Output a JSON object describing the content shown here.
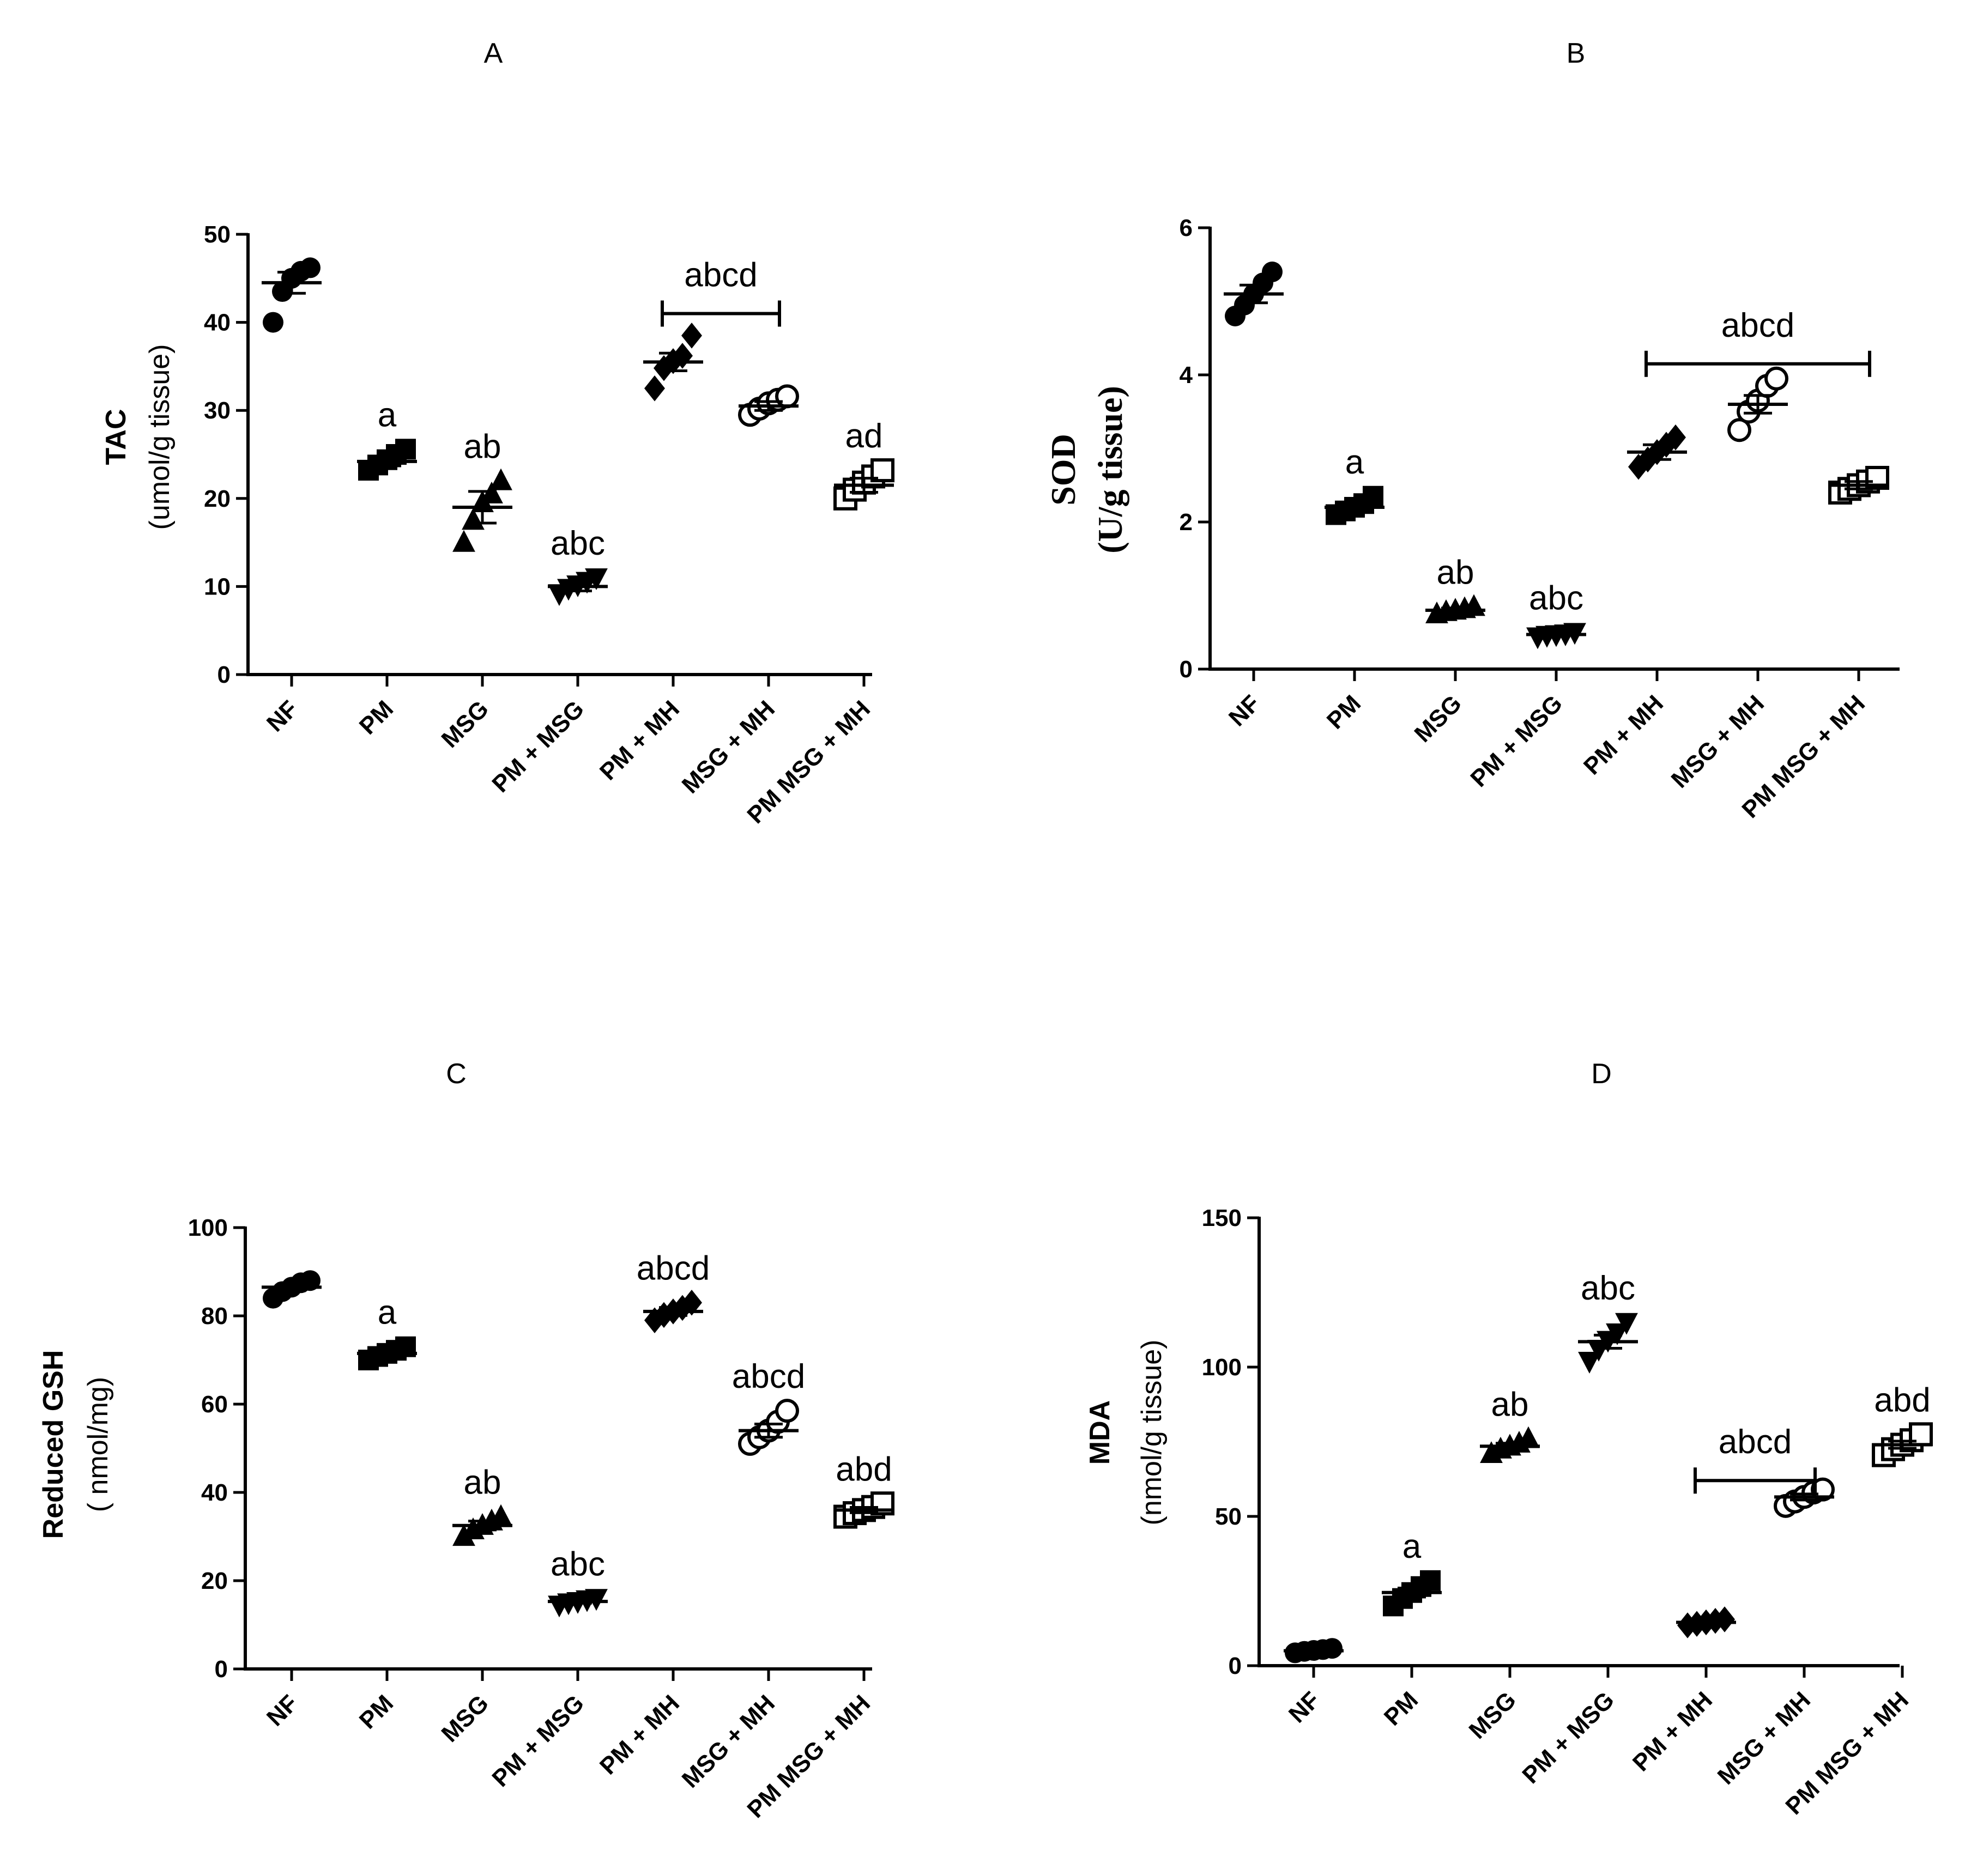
{
  "chart_data": [
    {
      "type": "scatter",
      "panel": "A",
      "ylabel": "TAC",
      "ylabel_unit": "(umol/g tissue)",
      "ylim": [
        0,
        50
      ],
      "yticks": [
        0,
        10,
        20,
        30,
        40,
        50
      ],
      "categories": [
        "NF",
        "PM",
        "MSG",
        "PM + MSG",
        "PM + MH",
        "MSG + MH",
        "PM MSG + MH"
      ],
      "markers": [
        "circle",
        "square",
        "triangle",
        "triangle-down",
        "diamond",
        "circle-open",
        "square-open"
      ],
      "means": [
        44.5,
        24.2,
        19,
        10,
        35.5,
        30.5,
        21.5
      ],
      "sem": [
        1.2,
        0.5,
        1.8,
        0.5,
        1.0,
        0.5,
        0.8
      ],
      "points": [
        [
          40,
          43.5,
          45,
          45.8,
          46.2
        ],
        [
          23.2,
          23.8,
          24.4,
          25,
          25.6
        ],
        [
          15,
          17.5,
          19.5,
          20.5,
          22
        ],
        [
          9.2,
          9.8,
          10.2,
          10.6,
          11
        ],
        [
          32.5,
          34.8,
          35.6,
          36.2,
          38.5
        ],
        [
          29.5,
          30.2,
          30.8,
          31.2,
          31.6
        ],
        [
          20,
          21,
          21.8,
          22.5,
          23.2
        ]
      ],
      "annotations": [
        "",
        "a",
        "ab",
        "abc",
        "",
        "",
        "ad"
      ],
      "bracket": {
        "label": "abcd",
        "from": 4,
        "to": 5,
        "y": 41
      }
    },
    {
      "type": "scatter",
      "panel": "B",
      "ylabel": "SOD",
      "ylabel_unit": "(U/g tissue)",
      "ylim": [
        0,
        6
      ],
      "yticks": [
        0,
        2,
        4,
        6
      ],
      "categories": [
        "NF",
        "PM",
        "MSG",
        "PM + MSG",
        "PM + MH",
        "MSG + MH",
        "PM MSG + MH"
      ],
      "markers": [
        "circle",
        "square",
        "triangle",
        "triangle-down",
        "diamond",
        "circle-open",
        "square-open"
      ],
      "means": [
        5.1,
        2.2,
        0.8,
        0.47,
        2.95,
        3.6,
        2.5
      ],
      "sem": [
        0.12,
        0.05,
        0.03,
        0.02,
        0.1,
        0.12,
        0.05
      ],
      "points": [
        [
          4.8,
          4.95,
          5.1,
          5.25,
          5.4
        ],
        [
          2.1,
          2.15,
          2.2,
          2.25,
          2.35
        ],
        [
          0.75,
          0.78,
          0.8,
          0.82,
          0.85
        ],
        [
          0.44,
          0.46,
          0.47,
          0.48,
          0.5
        ],
        [
          2.75,
          2.85,
          2.95,
          3.05,
          3.15
        ],
        [
          3.25,
          3.5,
          3.65,
          3.85,
          3.95
        ],
        [
          2.4,
          2.45,
          2.5,
          2.55,
          2.6
        ]
      ],
      "annotations": [
        "",
        "a",
        "ab",
        "abc",
        "",
        "",
        ""
      ],
      "bracket": {
        "label": "abcd",
        "from": 4,
        "to": 6,
        "y": 4.15
      }
    },
    {
      "type": "scatter",
      "panel": "C",
      "ylabel": "Reduced GSH",
      "ylabel_unit": "( nmol/mg)",
      "ylim": [
        0,
        100
      ],
      "yticks": [
        0,
        20,
        40,
        60,
        80,
        100
      ],
      "categories": [
        "NF",
        "PM",
        "MSG",
        "PM + MSG",
        "PM + MH",
        "MSG + MH",
        "PM MSG + MH"
      ],
      "markers": [
        "circle",
        "square",
        "triangle",
        "triangle-down",
        "diamond",
        "circle-open",
        "square-open"
      ],
      "means": [
        86.5,
        71.5,
        32.5,
        15.3,
        81,
        54,
        36
      ],
      "sem": [
        0.8,
        0.8,
        1.0,
        0.4,
        0.9,
        1.5,
        0.6
      ],
      "points": [
        [
          84,
          85.5,
          86.5,
          87.5,
          88
        ],
        [
          70,
          70.8,
          71.5,
          72.2,
          73
        ],
        [
          30,
          31.5,
          32.5,
          33.5,
          34.5
        ],
        [
          14.5,
          15,
          15.3,
          15.7,
          16
        ],
        [
          79,
          80.2,
          81,
          81.8,
          83
        ],
        [
          51,
          52.5,
          54,
          56,
          58.5
        ],
        [
          34.5,
          35.3,
          36,
          36.7,
          37.5
        ]
      ],
      "annotations": [
        "",
        "a",
        "ab",
        "abc",
        "abcd",
        "abcd",
        "abd"
      ]
    },
    {
      "type": "scatter",
      "panel": "D",
      "ylabel": "MDA",
      "ylabel_unit": "(nmol/g tissue)",
      "ylim": [
        0,
        150
      ],
      "yticks": [
        0,
        50,
        100,
        150
      ],
      "categories": [
        "NF",
        "PM",
        "MSG",
        "PM + MSG",
        "PM + MH",
        "MSG + MH",
        "PM MSG + MH"
      ],
      "markers": [
        "circle",
        "square",
        "triangle",
        "triangle-down",
        "diamond",
        "circle-open",
        "square-open"
      ],
      "means": [
        5,
        24.5,
        73.5,
        108.5,
        14.5,
        56.5,
        74
      ],
      "sem": [
        0.4,
        1.5,
        1.0,
        2.2,
        0.5,
        1.0,
        1.2
      ],
      "points": [
        [
          4.3,
          4.8,
          5.1,
          5.4,
          5.8
        ],
        [
          20,
          22.5,
          24.5,
          26.5,
          28.5
        ],
        [
          71,
          72.5,
          73.5,
          74.5,
          76
        ],
        [
          102,
          106,
          109,
          111.5,
          115
        ],
        [
          13.5,
          14,
          14.5,
          15,
          15.5
        ],
        [
          53.5,
          55,
          56.5,
          58,
          59
        ],
        [
          70.5,
          72.5,
          74,
          75.5,
          77.5
        ]
      ],
      "annotations": [
        "",
        "a",
        "ab",
        "abc",
        "",
        "",
        "abd"
      ],
      "bracket": {
        "label": "abcd",
        "from": 4,
        "to": 5,
        "y": 62
      }
    }
  ]
}
